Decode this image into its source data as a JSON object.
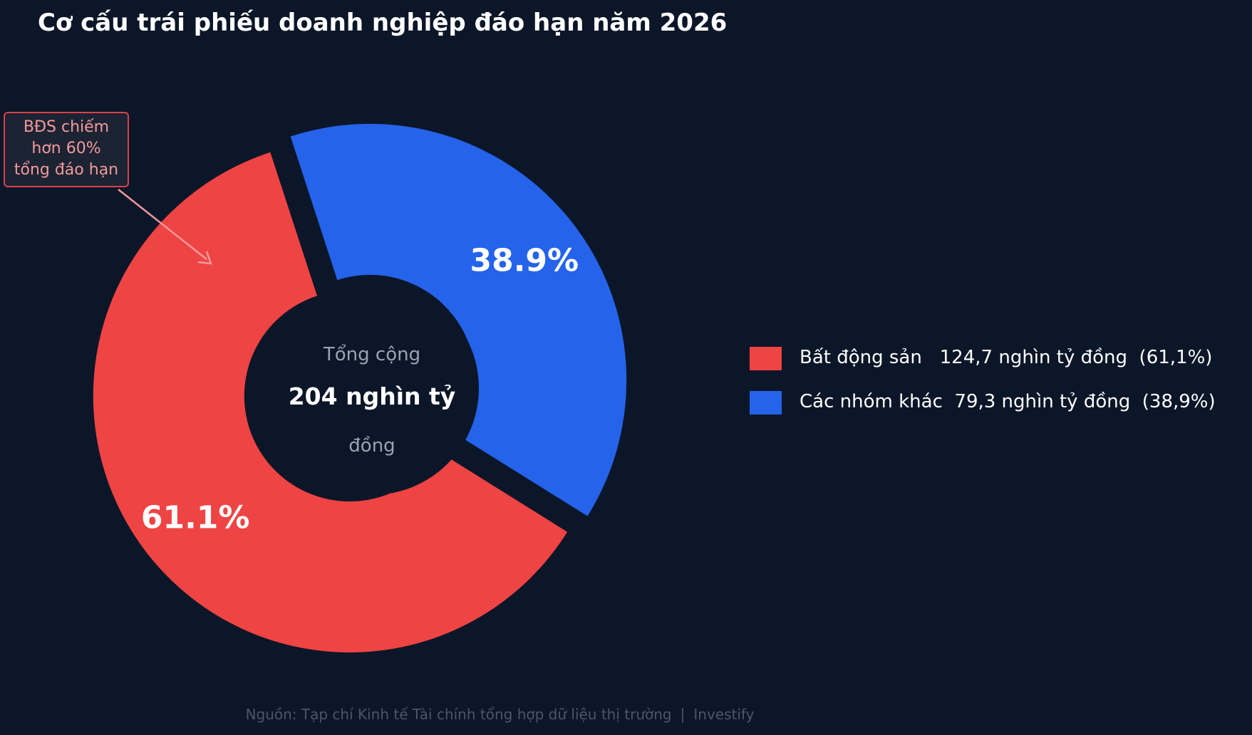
{
  "chart_data": {
    "type": "pie",
    "title": "Cơ cấu trái phiếu doanh nghiệp đáo hạn năm 2026",
    "categories": [
      "Bất động sản",
      "Các nhóm khác"
    ],
    "values": [
      61.1,
      38.9
    ],
    "slice_labels": [
      "61.1%",
      "38.9%"
    ],
    "colors": [
      "#ef4444",
      "#2563eb"
    ],
    "center": {
      "line1": "Tổng cộng",
      "line2": "204 nghìn tỷ",
      "line3": "đồng"
    },
    "legend": {
      "position": "right",
      "items": [
        {
          "label": "Bất động sản",
          "amount": "124,7 nghìn tỷ đồng",
          "pct": "(61,1%)"
        },
        {
          "label": "Các nhóm khác",
          "amount": "79,3 nghìn tỷ đồng",
          "pct": "(38,9%)"
        }
      ]
    },
    "annotation": {
      "lines": [
        "BĐS chiếm",
        "hơn 60%",
        "tổng đáo hạn"
      ]
    }
  },
  "footer": {
    "source": "Nguồn: Tạp chí Kinh tế Tài chính tổng hợp dữ liệu thị trường",
    "separator": "|",
    "brand": "Investify"
  }
}
